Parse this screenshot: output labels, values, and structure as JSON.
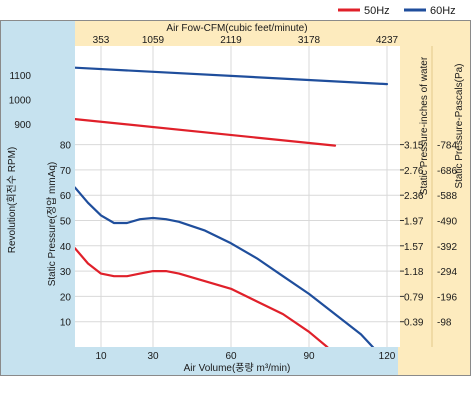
{
  "chart_data": {
    "type": "line",
    "legend": [
      {
        "name": "50Hz",
        "color": "#e0202a"
      },
      {
        "name": "60Hz",
        "color": "#1f4e9c"
      }
    ],
    "x_axis": {
      "label": "Air Volume(풍량 m³/min)",
      "ticks": [
        10,
        30,
        60,
        90,
        120
      ],
      "range": [
        0,
        125
      ]
    },
    "top_axis": {
      "label": "Air Fow-CFM(cubic feet/minute)",
      "ticks": [
        "353",
        "1059",
        "2119",
        "3178",
        "4237"
      ],
      "tick_at_m3min": [
        10,
        30,
        60,
        90,
        120
      ]
    },
    "left_axis_pressure": {
      "label": "Static Pressure(정압 mmAq)",
      "ticks": [
        10,
        20,
        30,
        40,
        50,
        60,
        70,
        80
      ],
      "range": [
        0,
        90
      ]
    },
    "left_axis_revolution": {
      "label": "Revolution(회전수 RPM)",
      "ticks": [
        900,
        1000,
        1100
      ]
    },
    "right_axis_inches": {
      "label": "Static Pressure-inches of water",
      "ticks": [
        "0.39",
        "0.79",
        "1.18",
        "1.57",
        "1.97",
        "2.36",
        "2.76",
        "3.15"
      ]
    },
    "right_axis_pascals": {
      "label": "Static Pressure-Pascals(Pa)",
      "ticks": [
        "98",
        "196",
        "294",
        "392",
        "490",
        "588",
        "686",
        "784"
      ]
    },
    "series": [
      {
        "name": "60Hz",
        "kind": "static_pressure",
        "color": "#1f4e9c",
        "x": [
          0,
          5,
          10,
          15,
          20,
          25,
          30,
          35,
          40,
          50,
          60,
          70,
          80,
          90,
          100,
          110,
          120,
          124
        ],
        "y": [
          63,
          57,
          52,
          49,
          49,
          50.5,
          51,
          50.5,
          49.5,
          46,
          41,
          35,
          28,
          21,
          13,
          5,
          -6,
          -12
        ]
      },
      {
        "name": "50Hz",
        "kind": "static_pressure",
        "color": "#e0202a",
        "x": [
          0,
          5,
          10,
          15,
          20,
          25,
          30,
          35,
          40,
          50,
          60,
          70,
          80,
          90,
          97,
          100
        ],
        "y": [
          39,
          33,
          29,
          28,
          28,
          29,
          30,
          30,
          29,
          26,
          23,
          18,
          13,
          6,
          0,
          -3
        ]
      },
      {
        "name": "60Hz",
        "kind": "revolution",
        "color": "#1f4e9c",
        "x": [
          0,
          120
        ],
        "y": [
          1130,
          1063
        ]
      },
      {
        "name": "50Hz",
        "kind": "revolution",
        "color": "#e0202a",
        "x": [
          0,
          100
        ],
        "y": [
          920,
          812
        ]
      }
    ]
  }
}
